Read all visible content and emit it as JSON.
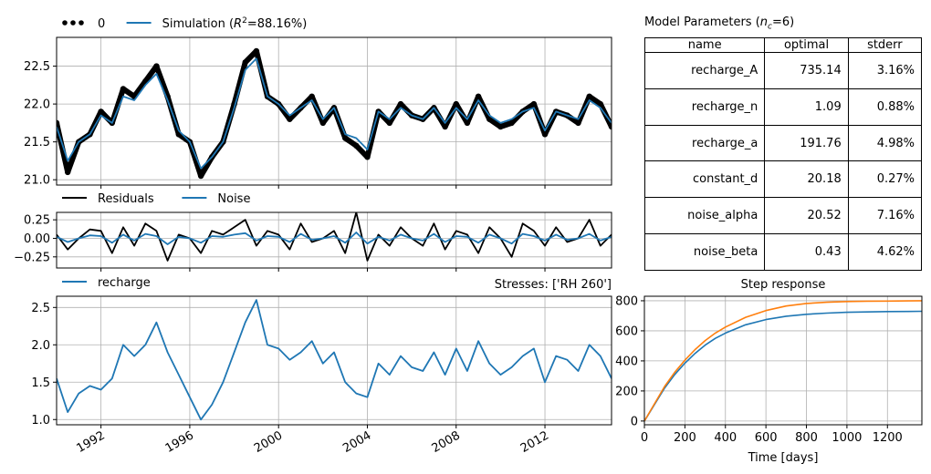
{
  "chart_data": [
    {
      "type": "line",
      "panel": "head",
      "legend": [
        "0",
        "Simulation (R²=88.16%)"
      ],
      "legend_placement": "top-left, outside",
      "series": [
        {
          "name": "0",
          "style": "black dots",
          "color": "#000000",
          "x": [
            1990.0,
            1990.5,
            1991.0,
            1991.5,
            1992.0,
            1992.5,
            1993.0,
            1993.5,
            1994.0,
            1994.5,
            1995.0,
            1995.5,
            1996.0,
            1996.5,
            1997.0,
            1997.5,
            1998.0,
            1998.5,
            1999.0,
            1999.5,
            2000.0,
            2000.5,
            2001.0,
            2001.5,
            2002.0,
            2002.5,
            2003.0,
            2003.5,
            2004.0,
            2004.5,
            2005.0,
            2005.5,
            2006.0,
            2006.5,
            2007.0,
            2007.5,
            2008.0,
            2008.5,
            2009.0,
            2009.5,
            2010.0,
            2010.5,
            2011.0,
            2011.5,
            2012.0,
            2012.5,
            2013.0,
            2013.5,
            2014.0,
            2014.5,
            2015.0
          ],
          "values": [
            21.75,
            21.1,
            21.5,
            21.6,
            21.9,
            21.75,
            22.2,
            22.1,
            22.3,
            22.5,
            22.1,
            21.6,
            21.5,
            21.05,
            21.3,
            21.5,
            22.0,
            22.55,
            22.7,
            22.1,
            22.0,
            21.8,
            21.95,
            22.1,
            21.75,
            21.95,
            21.55,
            21.45,
            21.3,
            21.9,
            21.75,
            22.0,
            21.85,
            21.8,
            21.95,
            21.7,
            22.0,
            21.75,
            22.1,
            21.8,
            21.7,
            21.75,
            21.9,
            22.0,
            21.6,
            21.9,
            21.85,
            21.75,
            22.1,
            22.0,
            21.7
          ]
        },
        {
          "name": "Simulation (R²=88.16%)",
          "style": "line",
          "color": "#1f77b4",
          "x": [
            1990.0,
            1990.5,
            1991.0,
            1991.5,
            1992.0,
            1992.5,
            1993.0,
            1993.5,
            1994.0,
            1994.5,
            1995.0,
            1995.5,
            1996.0,
            1996.5,
            1997.0,
            1997.5,
            1998.0,
            1998.5,
            1999.0,
            1999.5,
            2000.0,
            2000.5,
            2001.0,
            2001.5,
            2002.0,
            2002.5,
            2003.0,
            2003.5,
            2004.0,
            2004.5,
            2005.0,
            2005.5,
            2006.0,
            2006.5,
            2007.0,
            2007.5,
            2008.0,
            2008.5,
            2009.0,
            2009.5,
            2010.0,
            2010.5,
            2011.0,
            2011.5,
            2012.0,
            2012.5,
            2013.0,
            2013.5,
            2014.0,
            2014.5,
            2015.0
          ],
          "values": [
            21.7,
            21.25,
            21.5,
            21.6,
            21.85,
            21.75,
            22.1,
            22.05,
            22.25,
            22.4,
            22.05,
            21.65,
            21.5,
            21.15,
            21.3,
            21.5,
            21.95,
            22.45,
            22.6,
            22.1,
            22.0,
            21.85,
            21.95,
            22.05,
            21.8,
            21.95,
            21.6,
            21.55,
            21.4,
            21.9,
            21.8,
            21.95,
            21.85,
            21.8,
            21.95,
            21.75,
            21.95,
            21.8,
            22.05,
            21.85,
            21.75,
            21.8,
            21.9,
            21.95,
            21.65,
            21.9,
            21.85,
            21.8,
            22.05,
            21.95,
            21.75
          ]
        }
      ],
      "xlim": [
        1990.0,
        2015.0
      ],
      "ylim": [
        20.93,
        22.88
      ],
      "yticks": [
        21.0,
        21.5,
        22.0,
        22.5
      ],
      "grid": true
    },
    {
      "type": "line",
      "panel": "residuals",
      "legend": [
        "Residuals",
        "Noise"
      ],
      "legend_placement": "top-left, outside",
      "series": [
        {
          "name": "Residuals",
          "color": "#000000",
          "x": [
            1990.0,
            1990.5,
            1991.0,
            1991.5,
            1992.0,
            1992.5,
            1993.0,
            1993.5,
            1994.0,
            1994.5,
            1995.0,
            1995.5,
            1996.0,
            1996.5,
            1997.0,
            1997.5,
            1998.0,
            1998.5,
            1999.0,
            1999.5,
            2000.0,
            2000.5,
            2001.0,
            2001.5,
            2002.0,
            2002.5,
            2003.0,
            2003.5,
            2004.0,
            2004.5,
            2005.0,
            2005.5,
            2006.0,
            2006.5,
            2007.0,
            2007.5,
            2008.0,
            2008.5,
            2009.0,
            2009.5,
            2010.0,
            2010.5,
            2011.0,
            2011.5,
            2012.0,
            2012.5,
            2013.0,
            2013.5,
            2014.0,
            2014.5,
            2015.0
          ],
          "values": [
            0.05,
            -0.15,
            0.0,
            0.12,
            0.1,
            -0.2,
            0.15,
            -0.1,
            0.2,
            0.1,
            -0.3,
            0.05,
            0.0,
            -0.2,
            0.1,
            0.05,
            0.15,
            0.25,
            -0.1,
            0.1,
            0.05,
            -0.15,
            0.2,
            -0.05,
            0.0,
            0.1,
            -0.2,
            0.35,
            -0.3,
            0.05,
            -0.1,
            0.15,
            0.0,
            -0.1,
            0.2,
            -0.15,
            0.1,
            0.05,
            -0.2,
            0.15,
            0.0,
            -0.25,
            0.2,
            0.1,
            -0.1,
            0.15,
            -0.05,
            0.0,
            0.25,
            -0.1,
            0.05
          ]
        },
        {
          "name": "Noise",
          "color": "#1f77b4",
          "x": [
            1990.0,
            1990.5,
            1991.0,
            1991.5,
            1992.0,
            1992.5,
            1993.0,
            1993.5,
            1994.0,
            1994.5,
            1995.0,
            1995.5,
            1996.0,
            1996.5,
            1997.0,
            1997.5,
            1998.0,
            1998.5,
            1999.0,
            1999.5,
            2000.0,
            2000.5,
            2001.0,
            2001.5,
            2002.0,
            2002.5,
            2003.0,
            2003.5,
            2004.0,
            2004.5,
            2005.0,
            2005.5,
            2006.0,
            2006.5,
            2007.0,
            2007.5,
            2008.0,
            2008.5,
            2009.0,
            2009.5,
            2010.0,
            2010.5,
            2011.0,
            2011.5,
            2012.0,
            2012.5,
            2013.0,
            2013.5,
            2014.0,
            2014.5,
            2015.0
          ],
          "values": [
            0.02,
            -0.05,
            0.0,
            0.04,
            0.03,
            -0.06,
            0.05,
            -0.03,
            0.06,
            0.03,
            -0.08,
            0.02,
            0.0,
            -0.06,
            0.03,
            0.02,
            0.05,
            0.07,
            -0.03,
            0.03,
            0.02,
            -0.05,
            0.06,
            -0.02,
            0.0,
            0.03,
            -0.06,
            0.08,
            -0.07,
            0.02,
            -0.03,
            0.05,
            0.0,
            -0.03,
            0.06,
            -0.05,
            0.03,
            0.02,
            -0.06,
            0.05,
            0.0,
            -0.07,
            0.06,
            0.03,
            -0.03,
            0.05,
            -0.02,
            0.0,
            0.06,
            -0.03,
            0.02
          ]
        }
      ],
      "xlim": [
        1990.0,
        2015.0
      ],
      "ylim": [
        -0.4,
        0.35
      ],
      "yticks": [
        -0.25,
        0.0,
        0.25
      ],
      "ytick_labels": [
        "−0.25",
        "0.00",
        "0.25"
      ],
      "grid": true
    },
    {
      "type": "line",
      "panel": "stresses",
      "title_right": "Stresses: ['RH 260']",
      "legend": [
        "recharge"
      ],
      "legend_placement": "top-left, outside",
      "series": [
        {
          "name": "recharge",
          "color": "#1f77b4",
          "x": [
            1990.0,
            1990.5,
            1991.0,
            1991.5,
            1992.0,
            1992.5,
            1993.0,
            1993.5,
            1994.0,
            1994.5,
            1995.0,
            1995.5,
            1996.0,
            1996.5,
            1997.0,
            1997.5,
            1998.0,
            1998.5,
            1999.0,
            1999.5,
            2000.0,
            2000.5,
            2001.0,
            2001.5,
            2002.0,
            2002.5,
            2003.0,
            2003.5,
            2004.0,
            2004.5,
            2005.0,
            2005.5,
            2006.0,
            2006.5,
            2007.0,
            2007.5,
            2008.0,
            2008.5,
            2009.0,
            2009.5,
            2010.0,
            2010.5,
            2011.0,
            2011.5,
            2012.0,
            2012.5,
            2013.0,
            2013.5,
            2014.0,
            2014.5,
            2015.0
          ],
          "values": [
            1.55,
            1.1,
            1.35,
            1.45,
            1.4,
            1.55,
            2.0,
            1.85,
            2.0,
            2.3,
            1.9,
            1.6,
            1.3,
            1.0,
            1.2,
            1.5,
            1.9,
            2.3,
            2.6,
            2.0,
            1.95,
            1.8,
            1.9,
            2.05,
            1.75,
            1.9,
            1.5,
            1.35,
            1.3,
            1.75,
            1.6,
            1.85,
            1.7,
            1.65,
            1.9,
            1.6,
            1.95,
            1.65,
            2.05,
            1.75,
            1.6,
            1.7,
            1.85,
            1.95,
            1.5,
            1.85,
            1.8,
            1.65,
            2.0,
            1.85,
            1.55
          ]
        }
      ],
      "xlim": [
        1990.0,
        2015.0
      ],
      "ylim": [
        0.93,
        2.65
      ],
      "yticks": [
        1.0,
        1.5,
        2.0,
        2.5
      ],
      "xticks": [
        1992,
        1996,
        2000,
        2004,
        2008,
        2012
      ],
      "xtick_labels": [
        "1992",
        "1996",
        "2000",
        "2004",
        "2008",
        "2012"
      ],
      "grid": true
    },
    {
      "type": "line",
      "panel": "step",
      "title": "Step response",
      "xlabel": "Time [days]",
      "series": [
        {
          "color": "#1f77b4",
          "x": [
            0,
            50,
            100,
            150,
            200,
            250,
            300,
            350,
            400,
            500,
            600,
            700,
            800,
            900,
            1000,
            1100,
            1200,
            1300,
            1370
          ],
          "values": [
            0,
            110,
            220,
            310,
            385,
            450,
            505,
            550,
            585,
            640,
            675,
            697,
            710,
            718,
            723,
            726,
            728,
            729,
            730
          ]
        },
        {
          "color": "#ff7f0e",
          "x": [
            0,
            50,
            100,
            150,
            200,
            250,
            300,
            350,
            400,
            500,
            600,
            700,
            800,
            900,
            1000,
            1100,
            1200,
            1300,
            1370
          ],
          "values": [
            0,
            115,
            230,
            325,
            405,
            475,
            535,
            585,
            625,
            690,
            735,
            765,
            782,
            790,
            795,
            797,
            798,
            799,
            800
          ]
        }
      ],
      "xlim": [
        0,
        1370
      ],
      "ylim": [
        -25,
        830
      ],
      "xticks": [
        0,
        200,
        400,
        600,
        800,
        1000,
        1200
      ],
      "yticks": [
        0,
        200,
        400,
        600,
        800
      ],
      "grid": true
    }
  ],
  "parameters": {
    "title_pre": "Model Parameters (",
    "title_sym": "n",
    "title_sub": "c",
    "title_post": "=6)",
    "headers": [
      "name",
      "optimal",
      "stderr"
    ],
    "rows": [
      [
        "recharge_A",
        "735.14",
        "3.16%"
      ],
      [
        "recharge_n",
        "1.09",
        "0.88%"
      ],
      [
        "recharge_a",
        "191.76",
        "4.98%"
      ],
      [
        "constant_d",
        "20.18",
        "0.27%"
      ],
      [
        "noise_alpha",
        "20.52",
        "7.16%"
      ],
      [
        "noise_beta",
        "0.43",
        "4.62%"
      ]
    ]
  }
}
